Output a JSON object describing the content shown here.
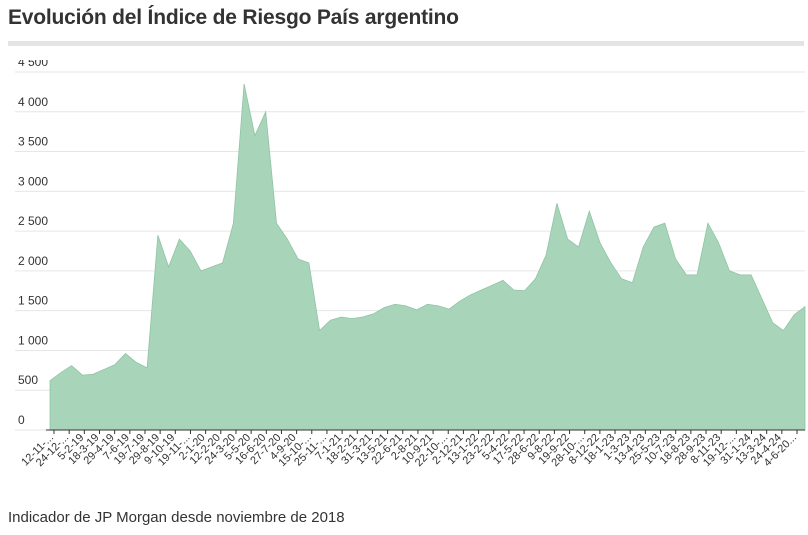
{
  "title": "Evolución del Índice de Riesgo País argentino",
  "caption": "Indicador de JP Morgan desde noviembre de 2018",
  "colors": {
    "area_fill": "#a8d5b9",
    "area_stroke": "#8fc4a4",
    "grid": "#e6e6e6",
    "axis": "#333333",
    "title_rule": "#e4e4e4"
  },
  "chart_data": {
    "type": "area",
    "title": "Evolución del Índice de Riesgo País argentino",
    "xlabel": "",
    "ylabel": "",
    "ylim": [
      0,
      4500
    ],
    "yticks": [
      0,
      500,
      1000,
      1500,
      2000,
      2500,
      3000,
      3500,
      4000,
      4500
    ],
    "ytick_labels": [
      "0",
      "500",
      "1 000",
      "1 500",
      "2 000",
      "2 500",
      "3 000",
      "3 500",
      "4 000",
      "4 500"
    ],
    "grid": true,
    "x_tick_labels": [
      "12-11-...",
      "24-12-...",
      "5-2-19",
      "18-3-19",
      "29-4-19",
      "7-6-19",
      "19-7-19",
      "29-8-19",
      "9-10-19",
      "19-11-...",
      "2-1-20",
      "12-2-20",
      "24-3-20",
      "5-5-20",
      "16-6-20",
      "27-7-20",
      "4-9-20",
      "15-10-...",
      "25-11-...",
      "7-1-21",
      "18-2-21",
      "31-3-21",
      "13-5-21",
      "22-6-21",
      "2-8-21",
      "10-9-21",
      "22-10-...",
      "2-12-21",
      "13-1-22",
      "23-2-22",
      "5-4-22",
      "17-5-22",
      "28-6-22",
      "9-8-22",
      "19-9-22",
      "28-10-...",
      "8-12-22",
      "18-1-23",
      "1-3-23",
      "13-4-23",
      "25-5-23",
      "10-7-23",
      "18-8-23",
      "28-9-23",
      "8-11-23",
      "19-12-...",
      "31-1-24",
      "13-3-24",
      "24-4-24",
      "4-6-20..."
    ],
    "x": [
      "2018-11",
      "2018-12",
      "2019-01",
      "2019-02",
      "2019-03",
      "2019-04",
      "2019-05",
      "2019-06",
      "2019-07",
      "2019-08a",
      "2019-08b",
      "2019-09",
      "2019-10",
      "2019-11",
      "2019-12",
      "2020-01",
      "2020-02",
      "2020-03a",
      "2020-03b",
      "2020-04",
      "2020-05",
      "2020-06",
      "2020-07",
      "2020-08",
      "2020-09a",
      "2020-09b",
      "2020-10",
      "2020-11",
      "2020-12",
      "2021-01",
      "2021-02",
      "2021-03",
      "2021-04",
      "2021-05",
      "2021-06",
      "2021-07",
      "2021-08",
      "2021-09",
      "2021-10",
      "2021-11",
      "2021-12",
      "2022-01",
      "2022-02",
      "2022-03",
      "2022-04",
      "2022-05",
      "2022-06",
      "2022-07",
      "2022-08",
      "2022-09",
      "2022-10",
      "2022-11",
      "2022-12",
      "2023-01",
      "2023-02",
      "2023-03",
      "2023-04",
      "2023-05",
      "2023-06",
      "2023-07",
      "2023-08",
      "2023-09",
      "2023-10",
      "2023-11",
      "2023-12",
      "2024-01",
      "2024-02",
      "2024-03",
      "2024-04",
      "2024-05",
      "2024-06"
    ],
    "values": [
      620,
      720,
      810,
      690,
      700,
      760,
      820,
      960,
      850,
      780,
      2450,
      2050,
      2400,
      2250,
      2000,
      2050,
      2100,
      2600,
      4350,
      3700,
      4000,
      2600,
      2400,
      2150,
      2100,
      1250,
      1380,
      1420,
      1400,
      1420,
      1460,
      1540,
      1580,
      1560,
      1510,
      1580,
      1560,
      1520,
      1620,
      1700,
      1760,
      1820,
      1880,
      1760,
      1750,
      1900,
      2200,
      2850,
      2400,
      2300,
      2750,
      2350,
      2100,
      1900,
      1850,
      2300,
      2550,
      2600,
      2150,
      1950,
      1950,
      2600,
      2350,
      2000,
      1950,
      1950,
      1650,
      1350,
      1250,
      1450,
      1550
    ]
  }
}
